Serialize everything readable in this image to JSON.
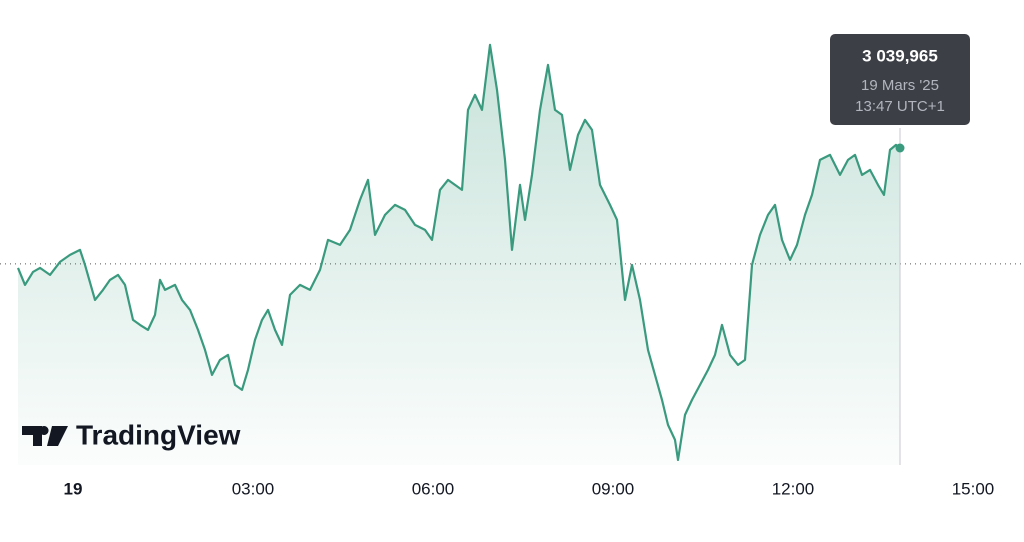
{
  "chart_data": {
    "type": "area",
    "x": [
      -55,
      -48,
      -40,
      -33,
      -23,
      -13,
      -3,
      7,
      12,
      22,
      30,
      37,
      45,
      52,
      60,
      67,
      75,
      82,
      87,
      92,
      102,
      109,
      117,
      125,
      132,
      139,
      147,
      155,
      162,
      169,
      175,
      182,
      189,
      195,
      202,
      209,
      217,
      227,
      237,
      247,
      255,
      267,
      277,
      287,
      295,
      302,
      312,
      322,
      332,
      342,
      352,
      359,
      367,
      375,
      382,
      389,
      395,
      402,
      409,
      417,
      424,
      432,
      439,
      447,
      452,
      459,
      467,
      475,
      482,
      489,
      497,
      505,
      512,
      519,
      527,
      537,
      544,
      552,
      559,
      567,
      575,
      582,
      589,
      595,
      602,
      605,
      612,
      619,
      627,
      635,
      642,
      649,
      657,
      665,
      672,
      679,
      687,
      695,
      702,
      709,
      717,
      724,
      732,
      739,
      747,
      757,
      767,
      775,
      782,
      789,
      797,
      805,
      811,
      817,
      823,
      827
    ],
    "values": [
      3033.97,
      3033.12,
      3033.77,
      3033.97,
      3033.62,
      3034.27,
      3034.62,
      3034.87,
      3034.12,
      3032.37,
      3032.87,
      3033.37,
      3033.62,
      3033.12,
      3031.37,
      3031.12,
      3030.87,
      3031.62,
      3033.37,
      3032.87,
      3033.12,
      3032.37,
      3031.87,
      3030.87,
      3029.87,
      3028.62,
      3029.37,
      3029.62,
      3028.12,
      3027.87,
      3028.87,
      3030.37,
      3031.37,
      3031.87,
      3030.87,
      3030.12,
      3032.62,
      3033.12,
      3032.87,
      3033.87,
      3035.37,
      3035.12,
      3035.87,
      3037.37,
      3038.37,
      3035.62,
      3036.62,
      3037.12,
      3036.87,
      3036.12,
      3035.87,
      3035.37,
      3037.87,
      3038.37,
      3038.12,
      3037.87,
      3041.87,
      3042.62,
      3041.87,
      3045.12,
      3042.87,
      3039.37,
      3034.87,
      3038.12,
      3036.37,
      3038.62,
      3041.87,
      3044.12,
      3041.87,
      3041.62,
      3038.87,
      3040.62,
      3041.37,
      3040.87,
      3038.12,
      3037.12,
      3036.37,
      3032.37,
      3034.12,
      3032.37,
      3029.87,
      3028.62,
      3027.37,
      3026.12,
      3025.37,
      3024.37,
      3026.62,
      3027.37,
      3028.12,
      3028.87,
      3029.62,
      3031.12,
      3029.62,
      3029.12,
      3029.37,
      3034.12,
      3035.62,
      3036.62,
      3037.12,
      3035.37,
      3034.37,
      3035.12,
      3036.62,
      3037.62,
      3039.37,
      3039.62,
      3038.62,
      3039.37,
      3039.62,
      3038.62,
      3038.87,
      3038.12,
      3037.62,
      3039.87,
      3040.12,
      3039.965
    ],
    "color": "#3a9a7d",
    "xlim": [
      -73,
      951
    ],
    "ylim": [
      3023.865,
      3047.365
    ],
    "xticks": [
      {
        "value": 0,
        "label": "19"
      },
      {
        "value": 180,
        "label": "03:00"
      },
      {
        "value": 360,
        "label": "06:00"
      },
      {
        "value": 540,
        "label": "09:00"
      },
      {
        "value": 720,
        "label": "12:00"
      },
      {
        "value": 900,
        "label": "15:00"
      }
    ],
    "ref_line": 3034.17,
    "tooltip": {
      "value": 3039.965,
      "label": "3 039,965",
      "date": "19 Mars '25",
      "time": "13:47 UTC+1"
    },
    "logo": "TradingView"
  }
}
